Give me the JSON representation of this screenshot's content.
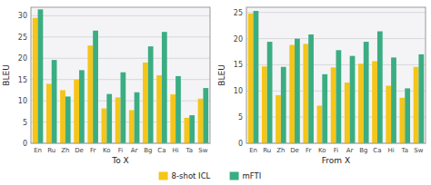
{
  "chart_data": [
    {
      "type": "bar",
      "categories": [
        "En",
        "Ru",
        "Zh",
        "De",
        "Fr",
        "Ko",
        "Fi",
        "Ar",
        "Bg",
        "Ca",
        "Hi",
        "Ta",
        "Sw"
      ],
      "series": [
        {
          "name": "8-shot ICL",
          "color": "#F5C518",
          "values": [
            29.5,
            14.0,
            12.5,
            15.0,
            23.0,
            8.2,
            10.8,
            7.8,
            19.0,
            16.0,
            11.5,
            6.0,
            10.5
          ]
        },
        {
          "name": "mFTI",
          "color": "#3BAD82",
          "values": [
            31.5,
            19.6,
            11.0,
            17.2,
            26.5,
            11.6,
            16.7,
            12.0,
            22.8,
            26.2,
            15.8,
            6.6,
            13.0
          ]
        }
      ],
      "xlabel": "To X",
      "ylabel": "BLEU",
      "ylim": [
        0,
        32
      ],
      "yticks": [
        0,
        5,
        10,
        15,
        20,
        25,
        30
      ],
      "grid": true,
      "legend": "bottom"
    },
    {
      "type": "bar",
      "categories": [
        "En",
        "Ru",
        "Zh",
        "De",
        "Fr",
        "Ko",
        "Fi",
        "Ar",
        "Bg",
        "Ca",
        "Hi",
        "Ta",
        "Sw"
      ],
      "series": [
        {
          "name": "8-shot ICL",
          "color": "#F5C518",
          "values": [
            24.8,
            14.7,
            9.2,
            18.8,
            19.0,
            7.2,
            14.5,
            11.6,
            15.2,
            15.7,
            11.0,
            8.7,
            14.6
          ]
        },
        {
          "name": "mFTI",
          "color": "#3BAD82",
          "values": [
            25.3,
            19.4,
            14.6,
            20.0,
            20.8,
            13.2,
            17.8,
            16.7,
            19.4,
            21.4,
            16.4,
            10.5,
            17.0
          ]
        }
      ],
      "xlabel": "From X",
      "ylabel": "BLEU",
      "ylim": [
        0,
        26
      ],
      "yticks": [
        0,
        5,
        10,
        15,
        20,
        25
      ],
      "grid": true
    }
  ]
}
